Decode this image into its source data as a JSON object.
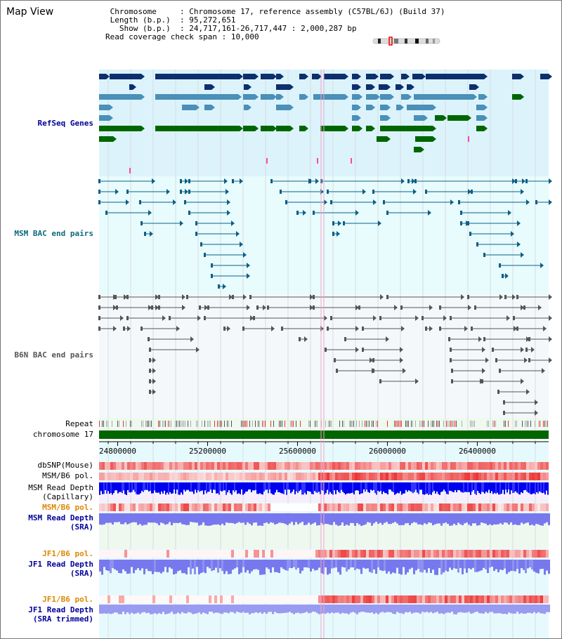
{
  "title": "Map View",
  "info": {
    "chromosome_key": "Chromosome",
    "chromosome_val": "Chromosome 17, reference assembly (C57BL/6J) (Build 37)",
    "length_key": "Length (b.p.)",
    "length_val": "95,272,651",
    "show_key": "Show (b.p.)",
    "show_val": "24,717,161-26,717,447 : 2,000,287 bp",
    "coverage_key": "Read coverage check span",
    "coverage_val": "10,000"
  },
  "labels": {
    "refseq": "RefSeq Genes",
    "msm_bac": "MSM BAC end pairs",
    "b6n_bac": "B6N BAC end pairs",
    "repeat": "Repeat",
    "chromosome": "chromosome 17",
    "dbsnp": "dbSNP(Mouse)",
    "msm_b6_pol_1": "MSM/B6 pol.",
    "msm_read_depth_cap_1": "MSM Read Depth",
    "msm_read_depth_cap_2": "(Capillary)",
    "msm_b6_pol_2": "MSM/B6 pol.",
    "msm_read_depth_sra_1": "MSM Read Depth",
    "msm_read_depth_sra_2": "(SRA)",
    "jf1_b6_pol_1": "JF1/B6 pol.",
    "jf1_read_depth_sra_1": "JF1 Read Depth",
    "jf1_read_depth_sra_2": "(SRA)",
    "jf1_b6_pol_2": "JF1/B6 pol.",
    "jf1_read_depth_trim_1": "JF1 Read Depth",
    "jf1_read_depth_trim_2": "(SRA trimmed)"
  },
  "axis": {
    "range_bp": [
      24717161,
      26717447
    ],
    "ticks": [
      24800000,
      25200000,
      25600000,
      26000000,
      26400000
    ],
    "tick_labels": [
      "24800000",
      "25200000",
      "25600000",
      "26000000",
      "26400000"
    ]
  },
  "colors": {
    "refseq_dark": "#0d2f6e",
    "refseq_mid": "#4a90b8",
    "refseq_green": "#006600",
    "refseq_bg": "#dcf3fb",
    "msm_bac": "#0d5f86",
    "b6n_bac": "#555555",
    "chromosome_bar": "#006600",
    "snp_red": "#ee3333",
    "depth_blue": "#0000ee",
    "depth_violet": "#7878ee",
    "label_blue": "#000099",
    "label_teal": "#0d6a7a",
    "label_orange": "#dd8800",
    "label_gray": "#555555"
  }
}
